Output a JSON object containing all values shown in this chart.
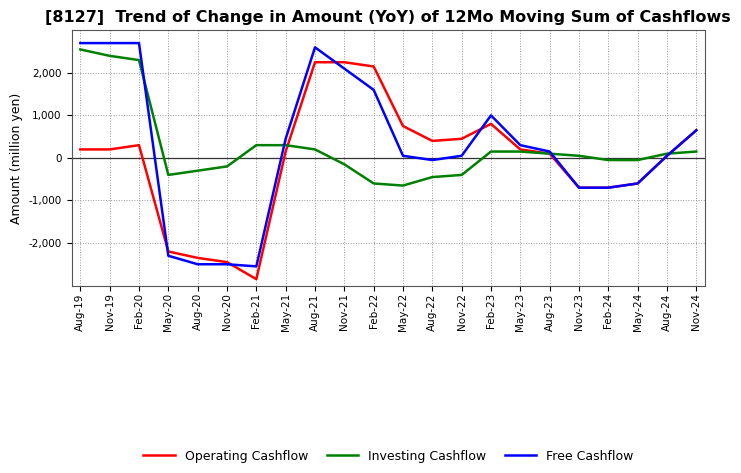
{
  "title": "[8127]  Trend of Change in Amount (YoY) of 12Mo Moving Sum of Cashflows",
  "ylabel": "Amount (million yen)",
  "xlabels": [
    "Aug-19",
    "Nov-19",
    "Feb-20",
    "May-20",
    "Aug-20",
    "Nov-20",
    "Feb-21",
    "May-21",
    "Aug-21",
    "Nov-21",
    "Feb-22",
    "May-22",
    "Aug-22",
    "Nov-22",
    "Feb-23",
    "May-23",
    "Aug-23",
    "Nov-23",
    "Feb-24",
    "May-24",
    "Aug-24",
    "Nov-24"
  ],
  "operating": [
    200,
    200,
    300,
    -2200,
    -2350,
    -2450,
    -2850,
    150,
    2250,
    2250,
    2150,
    750,
    400,
    450,
    800,
    200,
    100,
    -700,
    -700,
    -600,
    50,
    650
  ],
  "investing": [
    2550,
    2400,
    2300,
    -400,
    -300,
    -200,
    300,
    300,
    200,
    -150,
    -600,
    -650,
    -450,
    -400,
    150,
    150,
    100,
    50,
    -50,
    -50,
    100,
    150
  ],
  "free": [
    2700,
    2700,
    2700,
    -2300,
    -2500,
    -2500,
    -2550,
    450,
    2600,
    2100,
    1600,
    50,
    -50,
    50,
    1000,
    300,
    150,
    -700,
    -700,
    -600,
    50,
    650
  ],
  "ylim": [
    -3000,
    3000
  ],
  "yticks": [
    -2000,
    -1000,
    0,
    1000,
    2000
  ],
  "operating_color": "#ff0000",
  "investing_color": "#008000",
  "free_color": "#0000ff",
  "background_color": "#ffffff",
  "grid_color": "#999999",
  "linewidth": 1.8,
  "title_fontsize": 11.5,
  "axis_fontsize": 9,
  "tick_fontsize": 7.5,
  "legend_fontsize": 9
}
